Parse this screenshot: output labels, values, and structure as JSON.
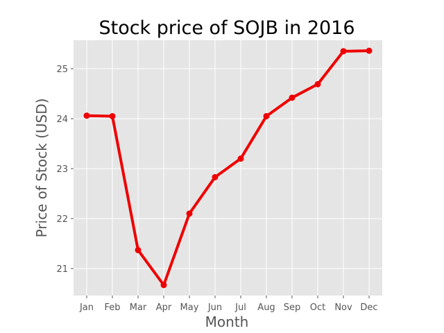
{
  "chart_data": {
    "type": "line",
    "title": "Stock price of SOJB in 2016",
    "xlabel": "Month",
    "ylabel": "Price of Stock (USD)",
    "categories": [
      "Jan",
      "Feb",
      "Mar",
      "Apr",
      "May",
      "Jun",
      "Jul",
      "Aug",
      "Sep",
      "Oct",
      "Nov",
      "Dec"
    ],
    "series": [
      {
        "values": [
          24.06,
          24.05,
          21.37,
          20.67,
          22.1,
          22.83,
          23.2,
          24.05,
          24.42,
          24.69,
          25.35,
          25.36
        ],
        "color": "#ee0000"
      }
    ],
    "y_ticks": [
      21,
      22,
      23,
      24,
      25
    ],
    "ylim": [
      20.46,
      25.57
    ],
    "grid": true,
    "background_color": "#e5e5e5"
  }
}
